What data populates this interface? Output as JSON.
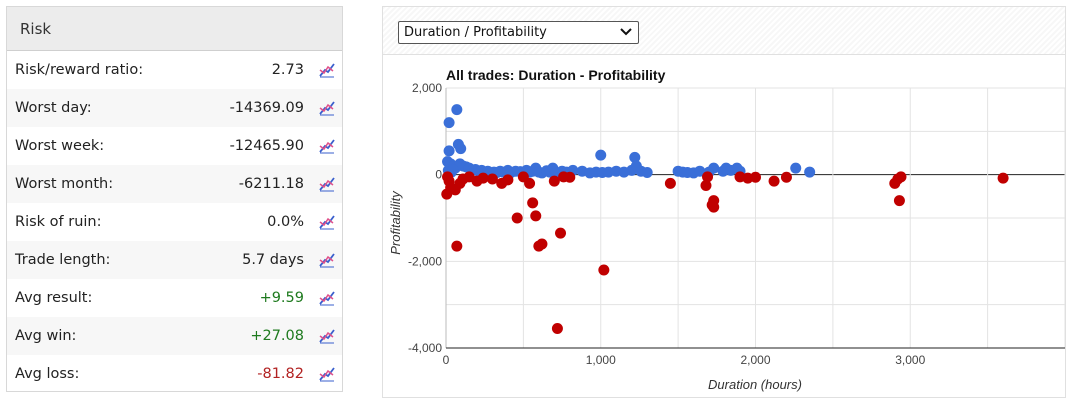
{
  "risk": {
    "title": "Risk",
    "rows": [
      {
        "label": "Risk/reward ratio:",
        "value": "2.73",
        "tone": "normal"
      },
      {
        "label": "Worst day:",
        "value": "-14369.09",
        "tone": "normal"
      },
      {
        "label": "Worst week:",
        "value": "-12465.90",
        "tone": "normal"
      },
      {
        "label": "Worst month:",
        "value": "-6211.18",
        "tone": "normal"
      },
      {
        "label": "Risk of ruin:",
        "value": "0.0%",
        "tone": "normal"
      },
      {
        "label": "Trade length:",
        "value": "5.7 days",
        "tone": "normal"
      },
      {
        "label": "Avg result:",
        "value": "+9.59",
        "tone": "positive"
      },
      {
        "label": "Avg win:",
        "value": "+27.08",
        "tone": "positive"
      },
      {
        "label": "Avg loss:",
        "value": "-81.82",
        "tone": "negative"
      }
    ],
    "row_icon": "chart-trend-icon"
  },
  "chart_panel": {
    "selected_view": "Duration / Profitability",
    "dropdown_icon": "chevron-down-icon"
  },
  "colors": {
    "win": "#3a6fd8",
    "loss": "#c00000",
    "positive_text": "#1e7a1e",
    "negative_text": "#b22222",
    "icon_blue": "#3a5fcd",
    "icon_pink": "#e0508a"
  },
  "chart_data": {
    "type": "scatter",
    "title": "All trades: Duration - Profitability",
    "xlabel": "Duration (hours)",
    "ylabel": "Profitability",
    "xlim": [
      0,
      4000
    ],
    "ylim": [
      -4000,
      2000
    ],
    "x_ticks": [
      0,
      1000,
      2000,
      3000
    ],
    "x_tick_labels": [
      "0",
      "1,000",
      "2,000",
      "3,000"
    ],
    "y_ticks": [
      2000,
      0,
      -2000,
      -4000
    ],
    "y_tick_labels": [
      "2,000",
      "0",
      "-2,000",
      "-4,000"
    ],
    "grid": true,
    "series": [
      {
        "points": [
          [
            20,
            1200
          ],
          [
            70,
            1500
          ],
          [
            80,
            700
          ],
          [
            95,
            600
          ],
          [
            20,
            550
          ],
          [
            10,
            300
          ],
          [
            30,
            250
          ],
          [
            50,
            200
          ],
          [
            60,
            150
          ],
          [
            90,
            250
          ],
          [
            110,
            200
          ],
          [
            130,
            180
          ],
          [
            150,
            150
          ],
          [
            170,
            100
          ],
          [
            190,
            120
          ],
          [
            210,
            80
          ],
          [
            230,
            100
          ],
          [
            250,
            60
          ],
          [
            270,
            80
          ],
          [
            290,
            40
          ],
          [
            310,
            60
          ],
          [
            330,
            50
          ],
          [
            350,
            80
          ],
          [
            370,
            60
          ],
          [
            400,
            100
          ],
          [
            420,
            50
          ],
          [
            450,
            80
          ],
          [
            480,
            70
          ],
          [
            500,
            40
          ],
          [
            520,
            100
          ],
          [
            540,
            60
          ],
          [
            560,
            80
          ],
          [
            580,
            150
          ],
          [
            600,
            60
          ],
          [
            620,
            40
          ],
          [
            650,
            90
          ],
          [
            670,
            60
          ],
          [
            690,
            150
          ],
          [
            710,
            50
          ],
          [
            750,
            80
          ],
          [
            780,
            60
          ],
          [
            820,
            100
          ],
          [
            880,
            80
          ],
          [
            930,
            40
          ],
          [
            970,
            60
          ],
          [
            1000,
            450
          ],
          [
            1010,
            50
          ],
          [
            1050,
            60
          ],
          [
            1100,
            80
          ],
          [
            1150,
            60
          ],
          [
            1200,
            100
          ],
          [
            1220,
            400
          ],
          [
            1230,
            200
          ],
          [
            1260,
            80
          ],
          [
            1300,
            50
          ],
          [
            1500,
            80
          ],
          [
            1530,
            60
          ],
          [
            1560,
            50
          ],
          [
            1600,
            40
          ],
          [
            1640,
            80
          ],
          [
            1700,
            60
          ],
          [
            1730,
            150
          ],
          [
            1790,
            80
          ],
          [
            1810,
            150
          ],
          [
            1840,
            100
          ],
          [
            1880,
            150
          ],
          [
            1900,
            80
          ],
          [
            2260,
            150
          ],
          [
            2350,
            60
          ],
          [
            15,
            100
          ],
          [
            25,
            80
          ],
          [
            35,
            60
          ],
          [
            45,
            120
          ]
        ]
      },
      {
        "points": [
          [
            10,
            -50
          ],
          [
            20,
            -150
          ],
          [
            30,
            -300
          ],
          [
            5,
            -450
          ],
          [
            60,
            -350
          ],
          [
            70,
            -1650
          ],
          [
            90,
            -200
          ],
          [
            110,
            -100
          ],
          [
            150,
            -50
          ],
          [
            200,
            -150
          ],
          [
            240,
            -80
          ],
          [
            300,
            -100
          ],
          [
            360,
            -200
          ],
          [
            400,
            -120
          ],
          [
            460,
            -1000
          ],
          [
            500,
            -50
          ],
          [
            540,
            -200
          ],
          [
            560,
            -650
          ],
          [
            580,
            -950
          ],
          [
            600,
            -1650
          ],
          [
            620,
            -1600
          ],
          [
            700,
            -150
          ],
          [
            720,
            -3550
          ],
          [
            740,
            -1350
          ],
          [
            760,
            -50
          ],
          [
            800,
            -60
          ],
          [
            1020,
            -2200
          ],
          [
            1450,
            -200
          ],
          [
            1680,
            -250
          ],
          [
            1690,
            -50
          ],
          [
            1720,
            -700
          ],
          [
            1730,
            -600
          ],
          [
            1730,
            -750
          ],
          [
            1900,
            -50
          ],
          [
            1950,
            -80
          ],
          [
            2000,
            -60
          ],
          [
            2120,
            -150
          ],
          [
            2200,
            -60
          ],
          [
            2900,
            -200
          ],
          [
            2920,
            -100
          ],
          [
            2930,
            -600
          ],
          [
            2940,
            -50
          ],
          [
            3600,
            -80
          ]
        ]
      }
    ]
  }
}
